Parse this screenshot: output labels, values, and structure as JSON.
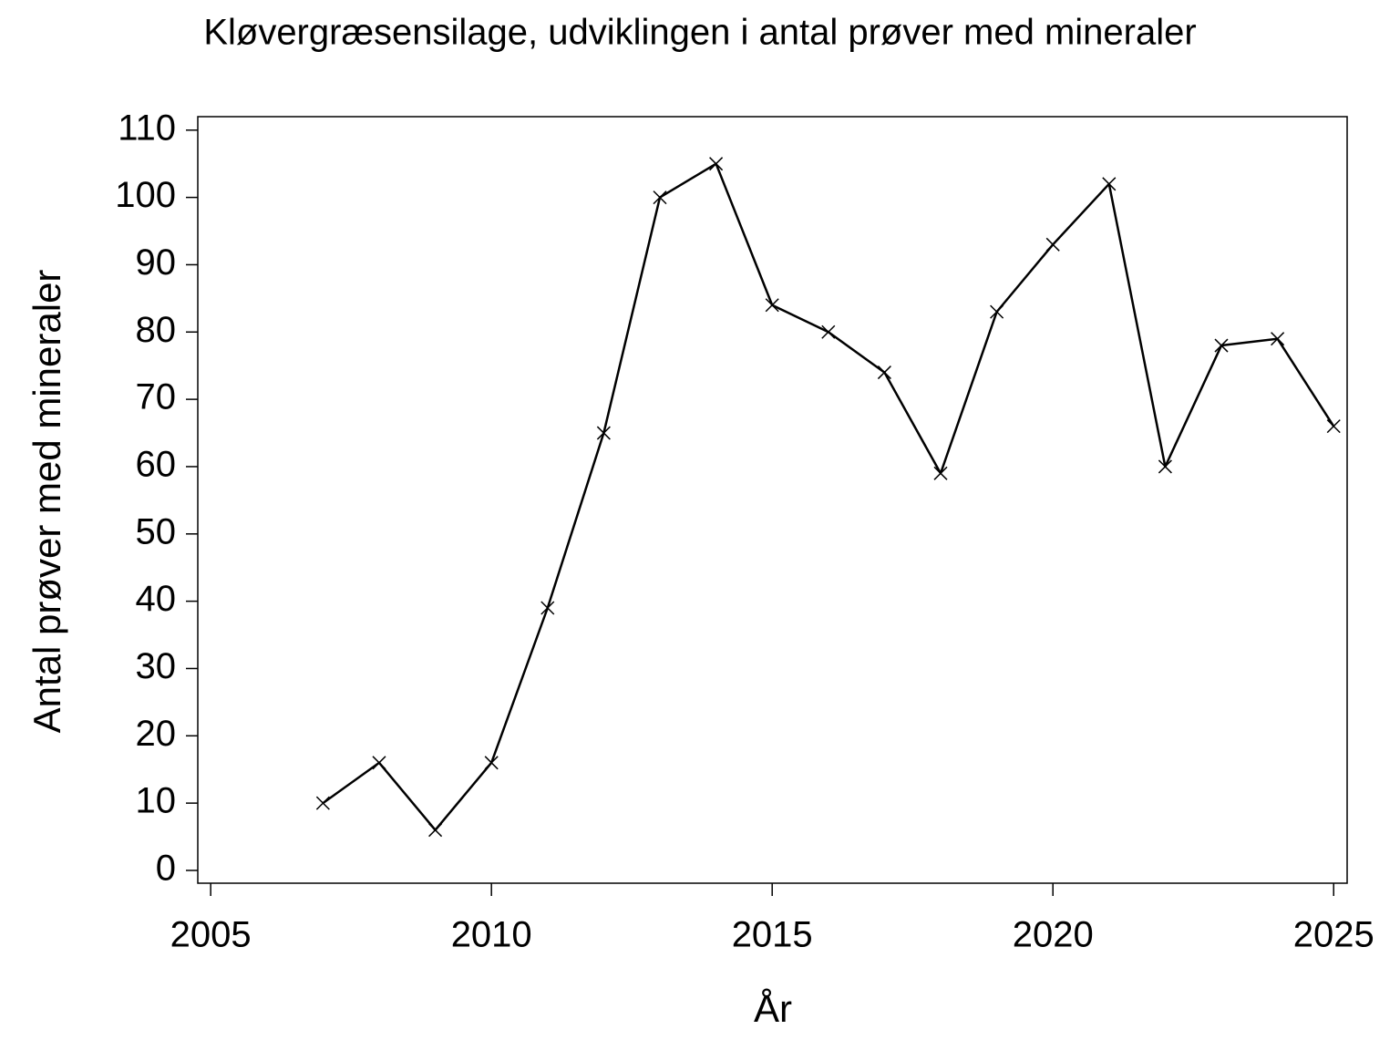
{
  "chart_data": {
    "type": "line",
    "title": "Kløvergræsensilage, udviklingen i antal prøver med mineraler",
    "x_label": "År",
    "y_label": "Antal prøver med mineraler",
    "x": [
      2007,
      2008,
      2009,
      2010,
      2011,
      2012,
      2013,
      2014,
      2015,
      2016,
      2017,
      2018,
      2019,
      2020,
      2021,
      2022,
      2023,
      2024,
      2025
    ],
    "series": [
      {
        "name": "Antal prøver med mineraler",
        "color": "#000000",
        "values": [
          10,
          16,
          6,
          16,
          39,
          65,
          100,
          105,
          84,
          80,
          74,
          59,
          83,
          93,
          102,
          60,
          78,
          79,
          66
        ]
      }
    ],
    "xlim": [
      2004.77,
      2025.24
    ],
    "xticks": [
      2005,
      2010,
      2015,
      2020,
      2025
    ],
    "ylim": [
      -1.9,
      112
    ],
    "yticks": [
      0,
      10,
      20,
      30,
      40,
      50,
      60,
      70,
      80,
      90,
      100,
      110
    ],
    "grid": false,
    "marker": "x"
  }
}
